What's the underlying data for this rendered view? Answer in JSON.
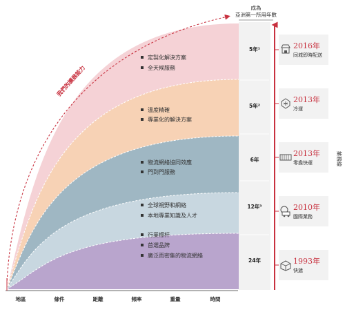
{
  "header": {
    "line1": "成為",
    "line2": "亞洲第一所用年數"
  },
  "arrow_label": "我們的擴展能力",
  "side_label": "業務線",
  "colors": {
    "accent": "#c8313f",
    "label_gray": "#4a4a4a"
  },
  "bands": [
    {
      "name": "band-1",
      "color": "#f5d2d6",
      "bullets": [
        "定製化解決方案",
        "全天候服務"
      ],
      "years": "5年¹",
      "milestone": {
        "year": "2016年",
        "label": "同城即時配送",
        "icon": "shop-icon"
      }
    },
    {
      "name": "band-2",
      "color": "#f7d2b5",
      "bullets": [
        "溫度精確",
        "專業化的解決方案"
      ],
      "years": "5年²",
      "milestone": {
        "year": "2013年",
        "label": "冷運",
        "icon": "snowflake-icon"
      }
    },
    {
      "name": "band-3",
      "color": "#9fb7c3",
      "bullets": [
        "物流網絡協同效應",
        "門到門服務"
      ],
      "years": "6年",
      "milestone": {
        "year": "2013年",
        "label": "零擔快運",
        "icon": "trailer-icon"
      }
    },
    {
      "name": "band-4",
      "color": "#c8d7e0",
      "bullets": [
        "全球視野和網絡",
        "本地專業知識及人才"
      ],
      "years": "12年³",
      "milestone": {
        "year": "2010年",
        "label": "國際業務",
        "icon": "globe-truck-icon"
      }
    },
    {
      "name": "band-5",
      "color": "#b9a5cd",
      "bullets": [
        "行業標杆",
        "首選品牌",
        "廣泛而密集的物流網絡"
      ],
      "years": "24年",
      "milestone": {
        "year": "1993年",
        "label": "快遞",
        "icon": "parcel-icon"
      }
    }
  ],
  "axis_labels": [
    "地區",
    "條件",
    "距離",
    "頻率",
    "重量",
    "時間"
  ]
}
